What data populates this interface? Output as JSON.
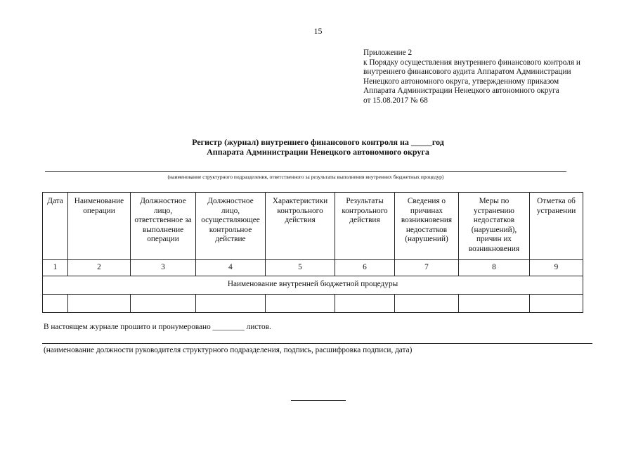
{
  "page_number": "15",
  "appendix": {
    "lines": [
      "Приложение 2",
      "к Порядку осуществления внутреннего финансового контроля и",
      "внутреннего финансового аудита Аппаратом Администрации",
      "Ненецкого автономного округа, утвержденному приказом",
      "Аппарата Администрации Ненецкого автономного округа",
      "от 15.08.2017 № 68"
    ]
  },
  "title": {
    "line1": "Регистр (журнал) внутреннего финансового контроля на _____год",
    "line2": "Аппарата Администрации Ненецкого автономного округа"
  },
  "unit_caption": "(наименование структурного подразделения, ответственного за результаты выполнения внутренних бюджетных процедур)",
  "table": {
    "headers": [
      "Дата",
      "Наименование операции",
      "Должностное лицо, ответственное за выполнение операции",
      "Должностное лицо, осуществляющее контрольное действие",
      "Характеристики контрольного действия",
      "Результаты контрольного действия",
      "Сведения о причинах возникновения недостатков (нарушений)",
      "Меры по устранению недостатков (нарушений), причин их возникновения",
      "Отметка об устранении"
    ],
    "numbers": [
      "1",
      "2",
      "3",
      "4",
      "5",
      "6",
      "7",
      "8",
      "9"
    ],
    "merged_row": "Наименование внутренней бюджетной процедуры"
  },
  "note": "В настоящем журнале прошито и пронумеровано ________ листов.",
  "signature_caption": "(наименование должности руководителя структурного подразделения, подпись, расшифровка подписи, дата)"
}
